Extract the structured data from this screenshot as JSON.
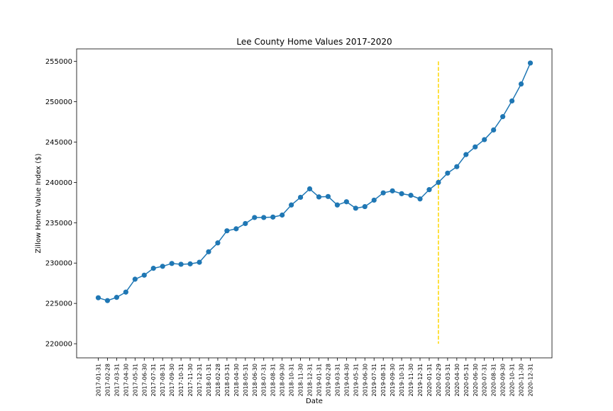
{
  "chart_data": {
    "type": "line",
    "title": "Lee County Home Values 2017-2020",
    "xlabel": "Date",
    "ylabel": "Zillow Home Value Index ($)",
    "x": [
      "2017-01-31",
      "2017-02-28",
      "2017-03-31",
      "2017-04-30",
      "2017-05-31",
      "2017-06-30",
      "2017-07-31",
      "2017-08-31",
      "2017-09-30",
      "2017-10-31",
      "2017-11-30",
      "2017-12-31",
      "2018-01-31",
      "2018-02-28",
      "2018-03-31",
      "2018-04-30",
      "2018-05-31",
      "2018-06-30",
      "2018-07-31",
      "2018-08-31",
      "2018-09-30",
      "2018-10-31",
      "2018-11-30",
      "2018-12-31",
      "2019-01-31",
      "2019-02-28",
      "2019-03-31",
      "2019-04-30",
      "2019-05-31",
      "2019-06-30",
      "2019-07-31",
      "2019-08-31",
      "2019-09-30",
      "2019-10-31",
      "2019-11-30",
      "2019-12-31",
      "2020-01-31",
      "2020-02-29",
      "2020-03-31",
      "2020-04-30",
      "2020-05-31",
      "2020-06-30",
      "2020-07-31",
      "2020-08-31",
      "2020-09-30",
      "2020-10-31",
      "2020-11-30",
      "2020-12-31"
    ],
    "series": [
      {
        "values": [
          225700,
          225350,
          225750,
          226400,
          228000,
          228500,
          229350,
          229600,
          229950,
          229850,
          229900,
          230100,
          231400,
          232500,
          234000,
          234250,
          234900,
          235650,
          235650,
          235700,
          235950,
          237200,
          238150,
          239200,
          238200,
          238250,
          237200,
          237600,
          236800,
          237000,
          237800,
          238700,
          238950,
          238600,
          238400,
          237950,
          239100,
          240000,
          241150,
          241950,
          243450,
          244400,
          245300,
          246500,
          248150,
          250100,
          252200,
          254800
        ],
        "color": "#1f77b4"
      }
    ],
    "vline": {
      "x": "2020-02-29",
      "ymin": 220000,
      "ymax": 255000,
      "color": "#ffd700",
      "style": "dashed"
    },
    "yticks": [
      220000,
      225000,
      230000,
      235000,
      240000,
      245000,
      250000,
      255000
    ],
    "ylim": [
      218250,
      256550
    ],
    "grid": false,
    "legend": "none"
  }
}
